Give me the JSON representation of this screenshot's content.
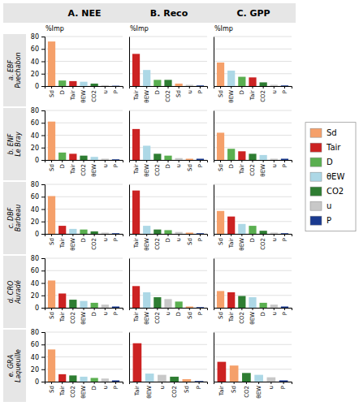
{
  "chart_data": [
    {
      "type": "bar",
      "title": "A. NEE",
      "ylabel": "a. EBF\nPuechabon",
      "annotations": [
        {
          "text": "%Imp"
        }
      ],
      "categories": [
        "Sd",
        "D",
        "Tair",
        "θEW",
        "CO2",
        "u",
        "P"
      ],
      "values": [
        72,
        9,
        8,
        7,
        4,
        1.5,
        0.5
      ],
      "colors": [
        "#F5A06A",
        "#5AAF50",
        "#CC2222",
        "#ADD8E6",
        "#2E7D32",
        "#C8C8C8",
        "#1A3A8F"
      ],
      "ylim": [
        0,
        80
      ],
      "yticks": [
        0,
        20,
        40,
        60,
        80
      ],
      "grid": true
    },
    {
      "type": "bar",
      "title": "B. Reco",
      "annotations": [
        {
          "text": "%Imp"
        }
      ],
      "categories": [
        "Tair",
        "θEW",
        "D",
        "CO2",
        "Sd",
        "u",
        "P"
      ],
      "values": [
        52,
        26,
        10,
        10,
        4,
        2,
        1
      ],
      "colors": [
        "#CC2222",
        "#ADD8E6",
        "#5AAF50",
        "#2E7D32",
        "#F5A06A",
        "#C8C8C8",
        "#1A3A8F"
      ],
      "ylim": [
        0,
        80
      ],
      "yticks": [
        0,
        20,
        40,
        60,
        80
      ],
      "grid": true,
      "tick_labels": "x"
    },
    {
      "type": "bar",
      "title": "C. GPP",
      "annotations": [
        {
          "text": "%Imp"
        }
      ],
      "categories": [
        "Sd",
        "θEW",
        "D",
        "Tair",
        "CO2",
        "u",
        "P"
      ],
      "values": [
        38,
        25,
        15,
        14,
        6,
        2,
        1
      ],
      "colors": [
        "#F5A06A",
        "#ADD8E6",
        "#5AAF50",
        "#CC2222",
        "#2E7D32",
        "#C8C8C8",
        "#1A3A8F"
      ],
      "ylim": [
        0,
        80
      ],
      "yticks": [
        0,
        20,
        40,
        60,
        80
      ],
      "grid": true,
      "tick_labels": "x"
    },
    {
      "type": "bar",
      "ylabel": "b. ENF\nLe Bray",
      "categories": [
        "Sd",
        "D",
        "Tair",
        "CO2",
        "θEW",
        "u",
        "P"
      ],
      "values": [
        62,
        12,
        10,
        7,
        5,
        2,
        1
      ],
      "colors": [
        "#F5A06A",
        "#5AAF50",
        "#CC2222",
        "#2E7D32",
        "#ADD8E6",
        "#C8C8C8",
        "#1A3A8F"
      ],
      "ylim": [
        0,
        80
      ],
      "yticks": [
        0,
        20,
        40,
        60,
        80
      ],
      "grid": true
    },
    {
      "type": "bar",
      "categories": [
        "Tair",
        "θEW",
        "CO2",
        "D",
        "u",
        "Sd",
        "P"
      ],
      "values": [
        50,
        23,
        10,
        7,
        3,
        2,
        2
      ],
      "colors": [
        "#CC2222",
        "#ADD8E6",
        "#2E7D32",
        "#5AAF50",
        "#C8C8C8",
        "#F5A06A",
        "#1A3A8F"
      ],
      "ylim": [
        0,
        80
      ],
      "yticks": [
        0,
        20,
        40,
        60,
        80
      ],
      "grid": true,
      "tick_labels": "x"
    },
    {
      "type": "bar",
      "categories": [
        "Sd",
        "D",
        "Tair",
        "CO2",
        "θEW",
        "u",
        "P"
      ],
      "values": [
        44,
        18,
        14,
        10,
        8,
        2,
        2
      ],
      "colors": [
        "#F5A06A",
        "#5AAF50",
        "#CC2222",
        "#2E7D32",
        "#ADD8E6",
        "#C8C8C8",
        "#1A3A8F"
      ],
      "ylim": [
        0,
        80
      ],
      "yticks": [
        0,
        20,
        40,
        60,
        80
      ],
      "grid": true,
      "tick_labels": "x"
    },
    {
      "type": "bar",
      "ylabel": "c. DBF\nBarbeau",
      "categories": [
        "Sd",
        "Tair",
        "θEW",
        "D",
        "CO2",
        "u",
        "P"
      ],
      "values": [
        61,
        13,
        8,
        7,
        4,
        2,
        1
      ],
      "colors": [
        "#F5A06A",
        "#CC2222",
        "#ADD8E6",
        "#5AAF50",
        "#2E7D32",
        "#C8C8C8",
        "#1A3A8F"
      ],
      "ylim": [
        0,
        80
      ],
      "yticks": [
        0,
        20,
        40,
        60,
        80
      ],
      "grid": true
    },
    {
      "type": "bar",
      "categories": [
        "Tair",
        "θEW",
        "CO2",
        "D",
        "u",
        "Sd",
        "P"
      ],
      "values": [
        70,
        13,
        7,
        6,
        3,
        2,
        1
      ],
      "colors": [
        "#CC2222",
        "#ADD8E6",
        "#2E7D32",
        "#5AAF50",
        "#C8C8C8",
        "#F5A06A",
        "#1A3A8F"
      ],
      "ylim": [
        0,
        80
      ],
      "yticks": [
        0,
        20,
        40,
        60,
        80
      ],
      "grid": true,
      "tick_labels": "x"
    },
    {
      "type": "bar",
      "categories": [
        "Sd",
        "Tair",
        "θEW",
        "D",
        "CO2",
        "u",
        "P"
      ],
      "values": [
        37,
        28,
        16,
        13,
        5,
        2,
        1
      ],
      "colors": [
        "#F5A06A",
        "#CC2222",
        "#ADD8E6",
        "#5AAF50",
        "#2E7D32",
        "#C8C8C8",
        "#1A3A8F"
      ],
      "ylim": [
        0,
        80
      ],
      "yticks": [
        0,
        20,
        40,
        60,
        80
      ],
      "grid": true,
      "tick_labels": "x"
    },
    {
      "type": "bar",
      "ylabel": "d. CRO\nAuradé",
      "categories": [
        "Sd",
        "Tair",
        "CO2",
        "θEW",
        "D",
        "u",
        "P"
      ],
      "values": [
        44,
        23,
        13,
        11,
        8,
        5,
        2
      ],
      "colors": [
        "#F5A06A",
        "#CC2222",
        "#2E7D32",
        "#ADD8E6",
        "#5AAF50",
        "#C8C8C8",
        "#1A3A8F"
      ],
      "ylim": [
        0,
        80
      ],
      "yticks": [
        0,
        20,
        40,
        60,
        80
      ],
      "grid": true
    },
    {
      "type": "bar",
      "categories": [
        "Tair",
        "θEW",
        "CO2",
        "u",
        "D",
        "Sd",
        "P"
      ],
      "values": [
        35,
        25,
        17,
        14,
        10,
        2,
        1
      ],
      "colors": [
        "#CC2222",
        "#ADD8E6",
        "#2E7D32",
        "#C8C8C8",
        "#5AAF50",
        "#F5A06A",
        "#1A3A8F"
      ],
      "ylim": [
        0,
        80
      ],
      "yticks": [
        0,
        20,
        40,
        60,
        80
      ],
      "grid": true,
      "tick_labels": "x"
    },
    {
      "type": "bar",
      "categories": [
        "Sd",
        "Tair",
        "CO2",
        "θEW",
        "D",
        "u",
        "P"
      ],
      "values": [
        27,
        25,
        19,
        17,
        8,
        5,
        2
      ],
      "colors": [
        "#F5A06A",
        "#CC2222",
        "#2E7D32",
        "#ADD8E6",
        "#5AAF50",
        "#C8C8C8",
        "#1A3A8F"
      ],
      "ylim": [
        0,
        80
      ],
      "yticks": [
        0,
        20,
        40,
        60,
        80
      ],
      "grid": true,
      "tick_labels": "x"
    },
    {
      "type": "bar",
      "ylabel": "e. GRA\nLaqueuille",
      "categories": [
        "Sd",
        "Tair",
        "CO2",
        "θEW",
        "D",
        "u",
        "P"
      ],
      "values": [
        52,
        12,
        10,
        8,
        6,
        5,
        2
      ],
      "colors": [
        "#F5A06A",
        "#CC2222",
        "#2E7D32",
        "#ADD8E6",
        "#5AAF50",
        "#C8C8C8",
        "#1A3A8F"
      ],
      "ylim": [
        0,
        80
      ],
      "yticks": [
        0,
        20,
        40,
        60,
        80
      ],
      "grid": true
    },
    {
      "type": "bar",
      "categories": [
        "Tair",
        "θEW",
        "u",
        "CO2",
        "Sd",
        "P"
      ],
      "values": [
        62,
        13,
        11,
        8,
        4,
        1
      ],
      "colors": [
        "#CC2222",
        "#ADD8E6",
        "#C8C8C8",
        "#2E7D32",
        "#F5A06A",
        "#1A3A8F"
      ],
      "ylim": [
        0,
        80
      ],
      "yticks": [
        0,
        20,
        40,
        60,
        80
      ],
      "grid": true,
      "tick_labels": "x"
    },
    {
      "type": "bar",
      "categories": [
        "Tair",
        "Sd",
        "CO2",
        "θEW",
        "u",
        "P"
      ],
      "values": [
        32,
        26,
        14,
        11,
        7,
        2
      ],
      "colors": [
        "#CC2222",
        "#F5A06A",
        "#2E7D32",
        "#ADD8E6",
        "#C8C8C8",
        "#1A3A8F"
      ],
      "ylim": [
        0,
        80
      ],
      "yticks": [
        0,
        20,
        40,
        60,
        80
      ],
      "grid": true,
      "tick_labels": "x"
    },
    {
      "type": "legend",
      "legend": "right",
      "series": [
        {
          "name": "Sd",
          "color": "#F5A06A"
        },
        {
          "name": "Tair",
          "color": "#CC2222"
        },
        {
          "name": "D",
          "color": "#5AAF50"
        },
        {
          "name": "θEW",
          "color": "#ADD8E6"
        },
        {
          "name": "CO2",
          "color": "#2E7D32"
        },
        {
          "name": "u",
          "color": "#C8C8C8"
        },
        {
          "name": "P",
          "color": "#1A3A8F"
        }
      ]
    }
  ]
}
